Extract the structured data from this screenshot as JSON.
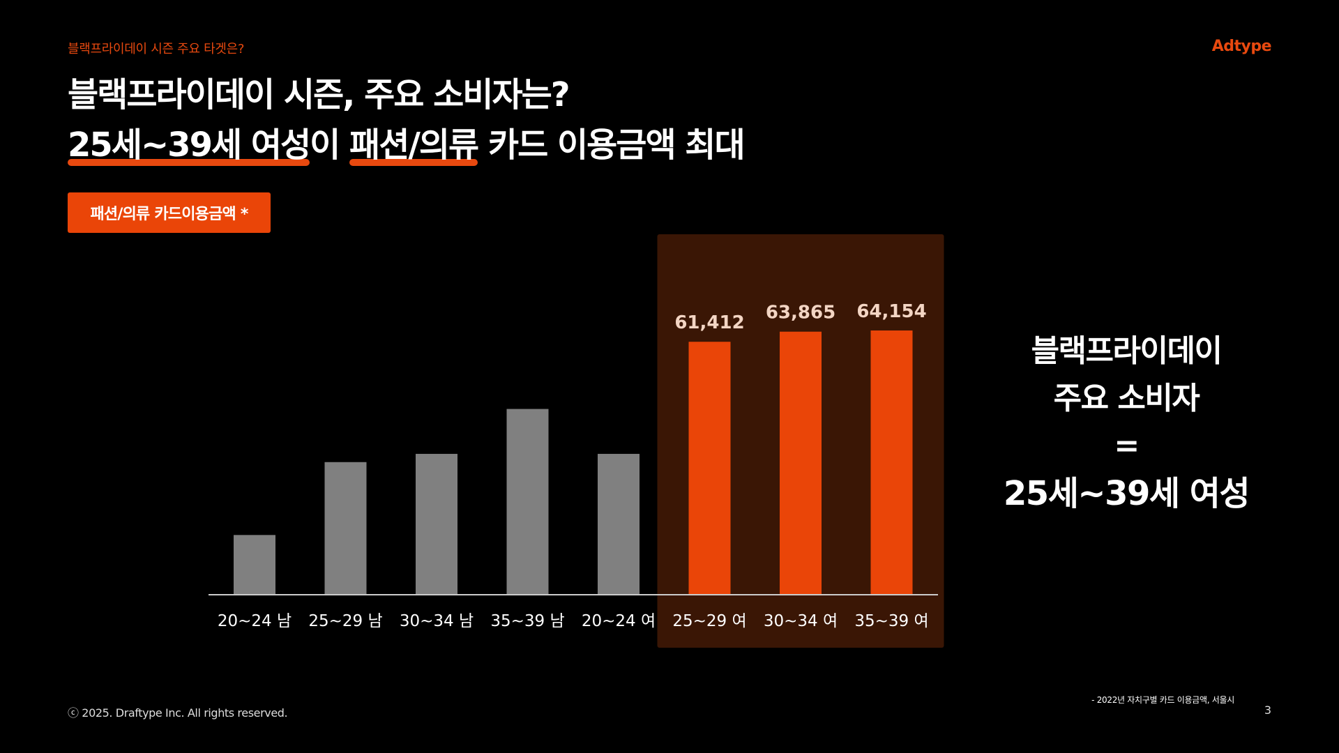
{
  "header": {
    "eyebrow": "블랙프라이데이 시즌 주요 타겟은?",
    "brand": "Adtype",
    "title_line1": "블랙프라이데이 시즌, 주요 소비자는?",
    "title_line2_hl1": "25세~39세 여성",
    "title_line2_mid1": "이 ",
    "title_line2_hl2": "패션/의류",
    "title_line2_rest": " 카드 이용금액 최대"
  },
  "badge_label": "패션/의류 카드이용금액 *",
  "chart_data": {
    "type": "bar",
    "categories": [
      "20~24 남",
      "25~29 남",
      "30~34 남",
      "35~39 남",
      "20~24 여",
      "25~29 여",
      "30~34 여",
      "35~39 여"
    ],
    "values": [
      14500,
      32200,
      34200,
      45100,
      34200,
      61412,
      63865,
      64154
    ],
    "data_labels": [
      "",
      "",
      "",
      "",
      "",
      "61,412",
      "63,865",
      "64,154"
    ],
    "highlighted": [
      false,
      false,
      false,
      false,
      false,
      true,
      true,
      true
    ],
    "ylim": [
      0,
      64154
    ],
    "colors": {
      "normal": "#808080",
      "highlight": "#ea4508",
      "highlight_bg": "#3a1605",
      "axis": "#cccccc"
    },
    "title": "",
    "xlabel": "",
    "ylabel": ""
  },
  "summary": {
    "line1": "블랙프라이데이",
    "line2": "주요 소비자",
    "line3": "=",
    "line4": "25세~39세 여성"
  },
  "footer": {
    "source": "- 2022년 자치구별 카드 이용금액, 서울시",
    "copyright": "ⓒ 2025. Draftype Inc. All rights reserved.",
    "page_number": "3"
  }
}
